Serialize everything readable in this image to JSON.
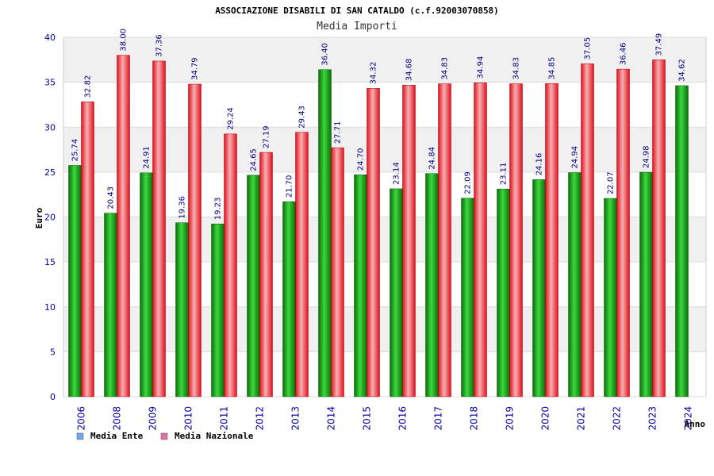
{
  "chart_data": {
    "type": "bar",
    "title": "ASSOCIAZIONE DISABILI DI SAN CATALDO (c.f.92003070858)",
    "subtitle": "Media Importi",
    "xlabel": "Anno",
    "ylabel": "Euro",
    "ylim": [
      0,
      40
    ],
    "yticks": [
      "0",
      "5",
      "10",
      "15",
      "20",
      "25",
      "30",
      "35",
      "40"
    ],
    "grid": true,
    "legend_position": "bottom-left",
    "categories": [
      "2006",
      "2008",
      "2009",
      "2010",
      "2011",
      "2012",
      "2013",
      "2014",
      "2015",
      "2016",
      "2017",
      "2018",
      "2019",
      "2020",
      "2021",
      "2022",
      "2023",
      "2024"
    ],
    "series": [
      {
        "name": "Media Ente",
        "color": "#11a011",
        "legend_color": "#6fa8f0",
        "values": [
          25.74,
          20.43,
          24.91,
          19.36,
          19.23,
          24.65,
          21.7,
          36.4,
          24.7,
          23.14,
          24.84,
          22.09,
          23.11,
          24.16,
          24.94,
          22.07,
          24.98,
          34.62
        ],
        "labels": [
          "25.74",
          "20.43",
          "24.91",
          "19.36",
          "19.23",
          "24.65",
          "21.70",
          "36.40",
          "24.70",
          "23.14",
          "24.84",
          "22.09",
          "23.11",
          "24.16",
          "24.94",
          "22.07",
          "24.98",
          "34.62"
        ]
      },
      {
        "name": "Media Nazionale",
        "color": "#e8202a",
        "legend_color": "#e070a8",
        "values": [
          32.82,
          38.0,
          37.36,
          34.79,
          29.24,
          27.19,
          29.43,
          27.71,
          34.32,
          34.68,
          34.83,
          34.94,
          34.83,
          34.85,
          37.05,
          36.46,
          37.49,
          null
        ],
        "labels": [
          "32.82",
          "38.00",
          "37.36",
          "34.79",
          "29.24",
          "27.19",
          "29.43",
          "27.71",
          "34.32",
          "34.68",
          "34.83",
          "34.94",
          "34.83",
          "34.85",
          "37.05",
          "36.46",
          "37.49",
          null
        ]
      }
    ]
  }
}
